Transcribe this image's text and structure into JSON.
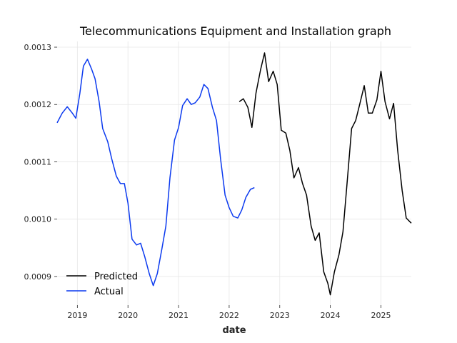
{
  "chart_data": {
    "type": "line",
    "title": "Telecommunications Equipment and Installation graph",
    "xlabel": "date",
    "ylabel": "",
    "xlim": [
      2018.6,
      2025.6
    ],
    "ylim": [
      0.00085,
      0.00131
    ],
    "x_ticks": [
      {
        "value": 2019,
        "label": "2019"
      },
      {
        "value": 2020,
        "label": "2020"
      },
      {
        "value": 2021,
        "label": "2021"
      },
      {
        "value": 2022,
        "label": "2022"
      },
      {
        "value": 2023,
        "label": "2023"
      },
      {
        "value": 2024,
        "label": "2024"
      },
      {
        "value": 2025,
        "label": "2025"
      }
    ],
    "y_ticks": [
      {
        "value": 0.0009,
        "label": "0.0009"
      },
      {
        "value": 0.001,
        "label": "0.0010"
      },
      {
        "value": 0.0011,
        "label": "0.0011"
      },
      {
        "value": 0.0012,
        "label": "0.0012"
      },
      {
        "value": 0.0013,
        "label": "0.0013"
      }
    ],
    "grid": true,
    "legend_position": "lower-left",
    "series": [
      {
        "name": "Predicted",
        "color": "#000000",
        "points": [
          [
            2022.2,
            0.001205
          ],
          [
            2022.28,
            0.00121
          ],
          [
            2022.37,
            0.001195
          ],
          [
            2022.45,
            0.00116
          ],
          [
            2022.53,
            0.00122
          ],
          [
            2022.62,
            0.00126
          ],
          [
            2022.7,
            0.00129
          ],
          [
            2022.78,
            0.00124
          ],
          [
            2022.87,
            0.001258
          ],
          [
            2022.95,
            0.001235
          ],
          [
            2023.03,
            0.001155
          ],
          [
            2023.12,
            0.00115
          ],
          [
            2023.2,
            0.00112
          ],
          [
            2023.28,
            0.001072
          ],
          [
            2023.37,
            0.00109
          ],
          [
            2023.45,
            0.001062
          ],
          [
            2023.53,
            0.001042
          ],
          [
            2023.62,
            0.000988
          ],
          [
            2023.7,
            0.000963
          ],
          [
            2023.78,
            0.000976
          ],
          [
            2023.87,
            0.000908
          ],
          [
            2023.95,
            0.000888
          ],
          [
            2024.0,
            0.000868
          ],
          [
            2024.08,
            0.000908
          ],
          [
            2024.17,
            0.000938
          ],
          [
            2024.25,
            0.000978
          ],
          [
            2024.33,
            0.001062
          ],
          [
            2024.42,
            0.001158
          ],
          [
            2024.5,
            0.001172
          ],
          [
            2024.58,
            0.0012
          ],
          [
            2024.67,
            0.001233
          ],
          [
            2024.75,
            0.001185
          ],
          [
            2024.83,
            0.001185
          ],
          [
            2024.92,
            0.001208
          ],
          [
            2025.0,
            0.001258
          ],
          [
            2025.08,
            0.001205
          ],
          [
            2025.17,
            0.001175
          ],
          [
            2025.25,
            0.001202
          ],
          [
            2025.33,
            0.00112
          ],
          [
            2025.42,
            0.00105
          ],
          [
            2025.5,
            0.001002
          ],
          [
            2025.6,
            0.000993
          ]
        ]
      },
      {
        "name": "Actual",
        "color": "#0a39ef",
        "points": [
          [
            2018.6,
            0.001168
          ],
          [
            2018.7,
            0.001185
          ],
          [
            2018.8,
            0.001196
          ],
          [
            2018.9,
            0.001185
          ],
          [
            2018.97,
            0.001176
          ],
          [
            2019.05,
            0.00122
          ],
          [
            2019.12,
            0.001267
          ],
          [
            2019.2,
            0.001279
          ],
          [
            2019.28,
            0.001262
          ],
          [
            2019.35,
            0.001245
          ],
          [
            2019.43,
            0.001205
          ],
          [
            2019.5,
            0.001158
          ],
          [
            2019.6,
            0.001135
          ],
          [
            2019.68,
            0.001105
          ],
          [
            2019.77,
            0.001075
          ],
          [
            2019.85,
            0.001062
          ],
          [
            2019.93,
            0.001062
          ],
          [
            2020.0,
            0.001028
          ],
          [
            2020.08,
            0.000965
          ],
          [
            2020.17,
            0.000955
          ],
          [
            2020.25,
            0.000958
          ],
          [
            2020.33,
            0.000935
          ],
          [
            2020.42,
            0.000905
          ],
          [
            2020.5,
            0.000884
          ],
          [
            2020.58,
            0.000905
          ],
          [
            2020.67,
            0.000948
          ],
          [
            2020.75,
            0.000988
          ],
          [
            2020.83,
            0.001072
          ],
          [
            2020.92,
            0.001138
          ],
          [
            2021.0,
            0.00116
          ],
          [
            2021.08,
            0.001198
          ],
          [
            2021.17,
            0.00121
          ],
          [
            2021.25,
            0.0012
          ],
          [
            2021.33,
            0.001203
          ],
          [
            2021.42,
            0.001213
          ],
          [
            2021.5,
            0.001235
          ],
          [
            2021.58,
            0.001228
          ],
          [
            2021.67,
            0.001195
          ],
          [
            2021.75,
            0.001172
          ],
          [
            2021.83,
            0.001105
          ],
          [
            2021.92,
            0.001042
          ],
          [
            2022.0,
            0.00102
          ],
          [
            2022.08,
            0.001005
          ],
          [
            2022.17,
            0.001002
          ],
          [
            2022.25,
            0.001016
          ],
          [
            2022.33,
            0.001038
          ],
          [
            2022.42,
            0.001052
          ],
          [
            2022.5,
            0.001055
          ]
        ]
      }
    ]
  }
}
